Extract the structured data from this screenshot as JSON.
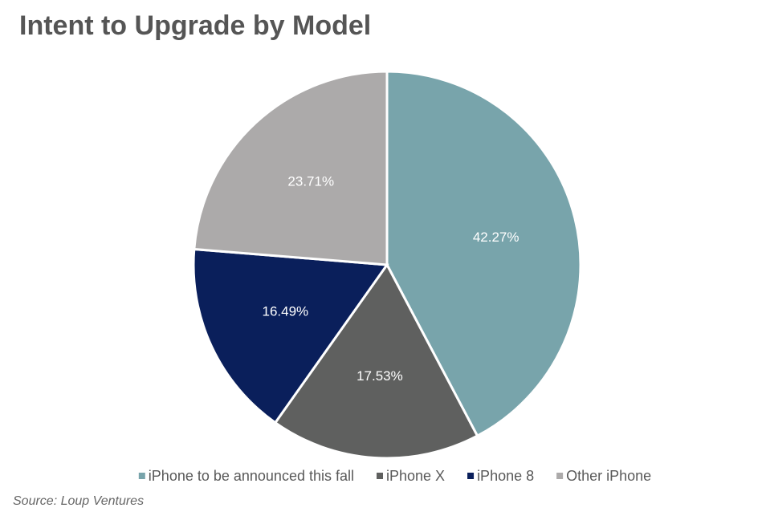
{
  "chart_data": {
    "type": "pie",
    "title": "Intent to Upgrade by Model",
    "categories": [
      "iPhone to be announced this fall",
      "iPhone X",
      "iPhone 8",
      "Other iPhone"
    ],
    "values": [
      42.27,
      17.53,
      16.49,
      23.71
    ],
    "value_labels": [
      "42.27%",
      "17.53%",
      "16.49%",
      "23.71%"
    ],
    "colors": [
      "#78a4ab",
      "#5f605f",
      "#0a1f5b",
      "#acaaaa"
    ],
    "source": "Source: Loup Ventures"
  }
}
